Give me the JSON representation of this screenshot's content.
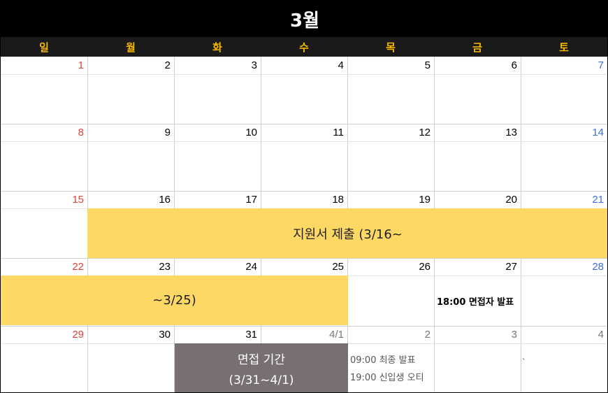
{
  "calendar": {
    "month_title": "3월",
    "weekdays": [
      "일",
      "월",
      "화",
      "수",
      "목",
      "금",
      "토"
    ],
    "colors": {
      "sunday": "#e8403a",
      "saturday": "#3d6fd1",
      "weekday_header": "#f5b800",
      "event_yellow": "#fdd865",
      "event_gray": "#787070"
    },
    "weeks": [
      [
        "1",
        "2",
        "3",
        "4",
        "5",
        "6",
        "7"
      ],
      [
        "8",
        "9",
        "10",
        "11",
        "12",
        "13",
        "14"
      ],
      [
        "15",
        "16",
        "17",
        "18",
        "19",
        "20",
        "21"
      ],
      [
        "22",
        "23",
        "24",
        "25",
        "26",
        "27",
        "28"
      ],
      [
        "29",
        "30",
        "31",
        "4/1",
        "2",
        "3",
        "4"
      ]
    ],
    "events": {
      "application_part1": "지원서 제출 (3/16~",
      "application_part2": "~3/25)",
      "interviewee_announce": "18:00 면접자 발표",
      "interview_title": "면접 기간",
      "interview_range": "(3/31~4/1)",
      "final_announce": "09:00 최종 발표",
      "orientation": "19:00 신입생 오티",
      "stray_mark": "ˋ"
    }
  }
}
